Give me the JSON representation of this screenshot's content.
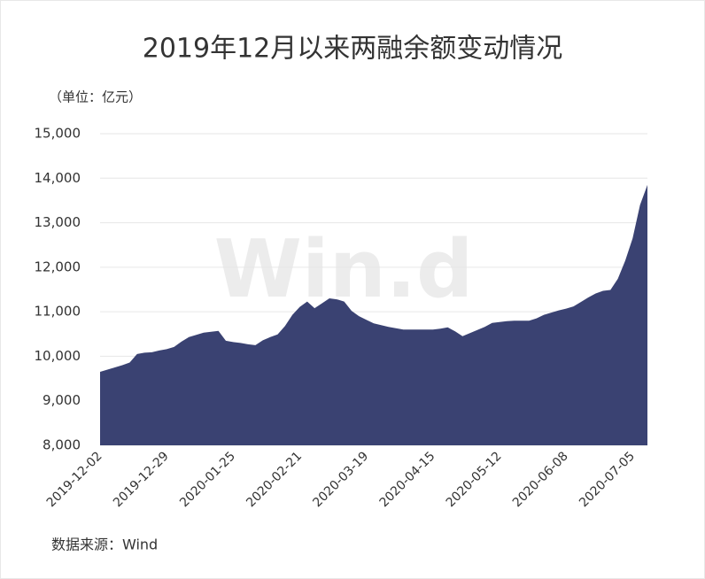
{
  "chart_data": {
    "type": "area",
    "title": "2019年12月以来两融余额变动情况",
    "unit_label": "（单位：亿元）",
    "source": "数据来源：Wind",
    "watermark": "Win.d",
    "color": "#3a4272",
    "grid": true,
    "categories": [
      "2019-12-02",
      null,
      null,
      null,
      null,
      null,
      null,
      null,
      null,
      "2019-12-29",
      null,
      null,
      null,
      null,
      null,
      null,
      null,
      null,
      "2020-01-25",
      null,
      null,
      null,
      null,
      null,
      null,
      null,
      null,
      "2020-02-21",
      null,
      null,
      null,
      null,
      null,
      null,
      null,
      null,
      "2020-03-19",
      null,
      null,
      null,
      null,
      null,
      null,
      null,
      null,
      "2020-04-15",
      null,
      null,
      null,
      null,
      null,
      null,
      null,
      null,
      "2020-05-12",
      null,
      null,
      null,
      null,
      null,
      null,
      null,
      null,
      "2020-06-08",
      null,
      null,
      null,
      null,
      null,
      null,
      null,
      null,
      "2020-07-05",
      null,
      null
    ],
    "values": [
      9650,
      9700,
      9750,
      9800,
      9860,
      10050,
      10080,
      10090,
      10130,
      10160,
      10210,
      10330,
      10430,
      10480,
      10530,
      10550,
      10570,
      10350,
      10320,
      10300,
      10270,
      10250,
      10360,
      10430,
      10490,
      10680,
      10930,
      11110,
      11230,
      11080,
      11190,
      11300,
      11280,
      11230,
      11020,
      10900,
      10820,
      10740,
      10700,
      10660,
      10630,
      10600,
      10600,
      10600,
      10600,
      10600,
      10620,
      10650,
      10560,
      10450,
      10520,
      10590,
      10660,
      10750,
      10770,
      10790,
      10800,
      10800,
      10800,
      10850,
      10930,
      10980,
      11030,
      11070,
      11120,
      11220,
      11320,
      11410,
      11470,
      11490,
      11740,
      12150,
      12650,
      13400,
      13850
    ],
    "ylim": [
      8000,
      15000
    ],
    "yticks": [
      {
        "value": 8000,
        "label": "8,000"
      },
      {
        "value": 9000,
        "label": "9,000"
      },
      {
        "value": 10000,
        "label": "10,000"
      },
      {
        "value": 11000,
        "label": "11,000"
      },
      {
        "value": 12000,
        "label": "12,000"
      },
      {
        "value": 13000,
        "label": "13,000"
      },
      {
        "value": 14000,
        "label": "14,000"
      },
      {
        "value": 15000,
        "label": "15,000"
      }
    ]
  }
}
